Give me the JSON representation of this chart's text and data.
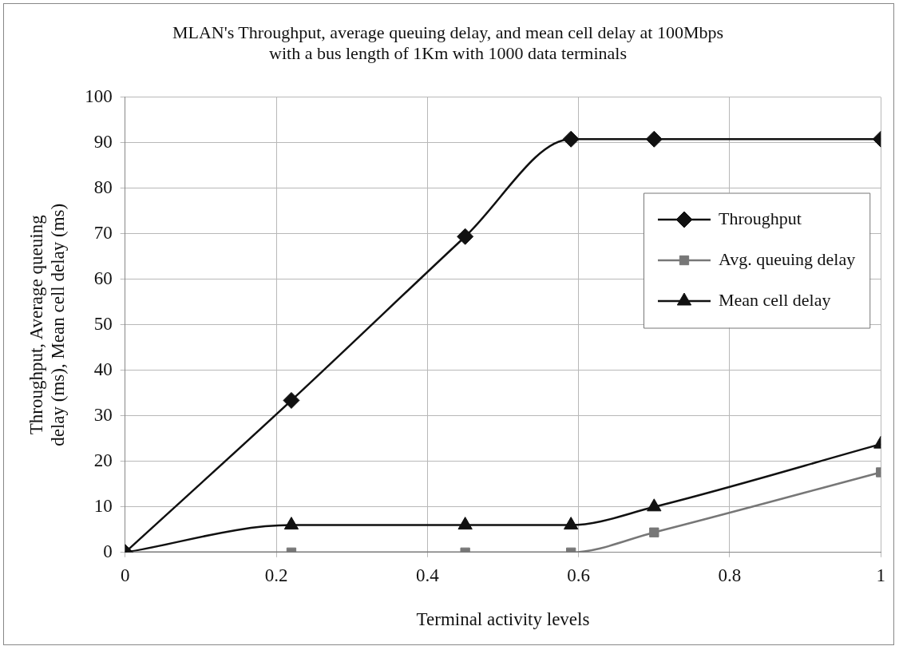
{
  "chart_data": {
    "type": "line",
    "title": "MLAN's Throughput, average queuing delay, and mean cell delay at 100Mbps\nwith a bus length of 1Km with 1000 data terminals",
    "xlabel": "Terminal activity levels",
    "ylabel": "Throughput, Average queuing\ndelay (ms), Mean cell delay (ms)",
    "x": [
      0,
      0.22,
      0.45,
      0.59,
      0.7,
      1
    ],
    "series": [
      {
        "name": "Throughput",
        "color": "#111111",
        "marker": "diamond",
        "values": [
          0,
          33.4,
          69.4,
          90.8,
          90.8,
          90.8
        ]
      },
      {
        "name": "Avg. queuing delay",
        "color": "#777777",
        "marker": "square",
        "values": [
          0,
          0,
          0,
          0,
          4.4,
          17.6
        ]
      },
      {
        "name": "Mean cell delay",
        "color": "#111111",
        "marker": "triangle",
        "values": [
          0,
          6,
          6,
          6,
          10,
          23.8
        ]
      }
    ],
    "xlim": [
      0,
      1
    ],
    "xticks": [
      0,
      0.2,
      0.4,
      0.6,
      0.8,
      1
    ],
    "ylim": [
      0,
      100
    ],
    "yticks": [
      0,
      10,
      20,
      30,
      40,
      50,
      60,
      70,
      80,
      90,
      100
    ],
    "grid": true,
    "legend": "right",
    "line_style": "solid"
  }
}
